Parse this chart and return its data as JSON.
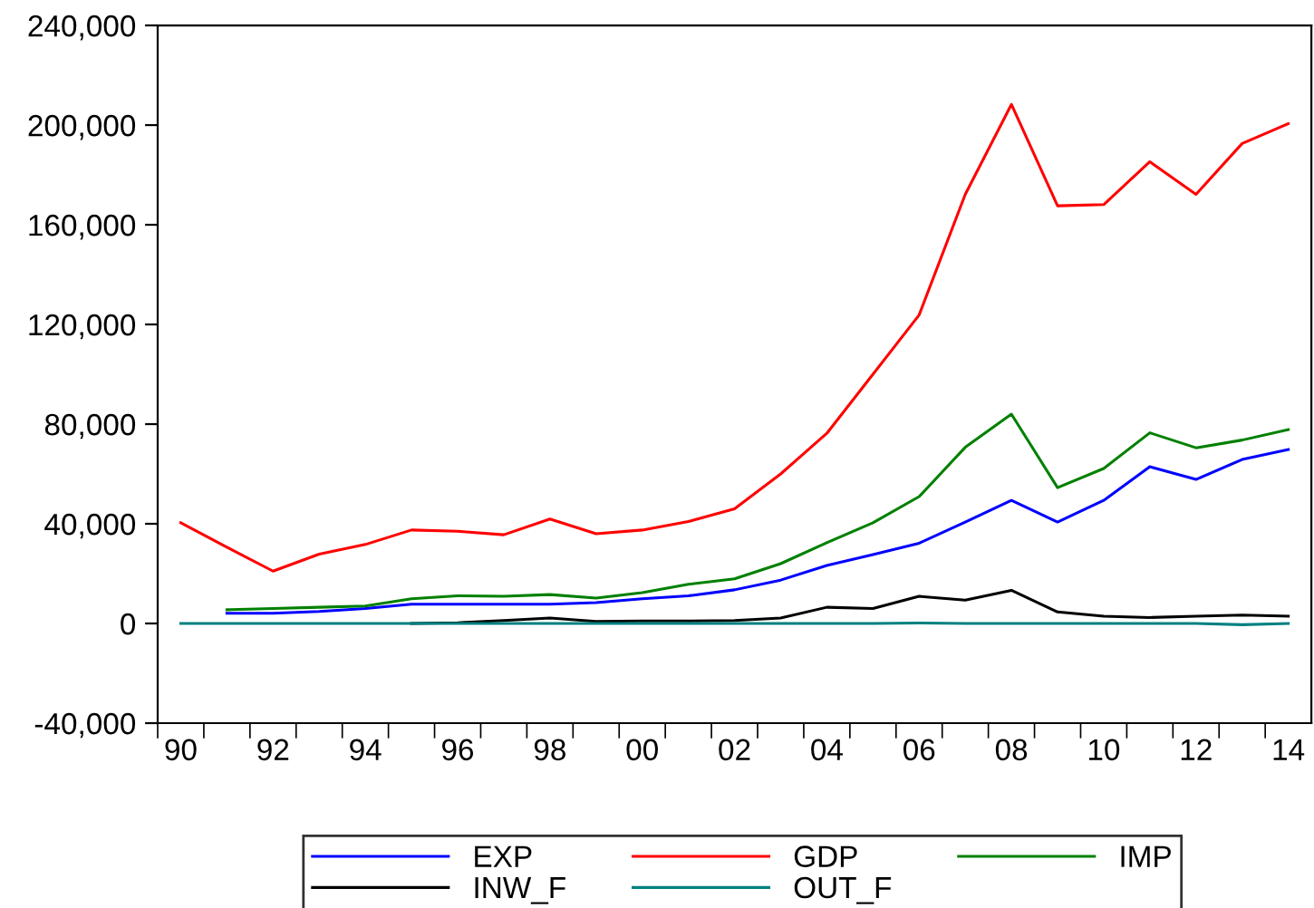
{
  "chart_data": {
    "type": "line",
    "x": [
      1990,
      1991,
      1992,
      1993,
      1994,
      1995,
      1996,
      1997,
      1998,
      1999,
      2000,
      2001,
      2002,
      2003,
      2004,
      2005,
      2006,
      2007,
      2008,
      2009,
      2010,
      2011,
      2012,
      2013,
      2014
    ],
    "series": [
      {
        "name": "EXP",
        "color": "#0000ff",
        "values": [
          null,
          4100,
          4100,
          4800,
          6000,
          7700,
          7700,
          7700,
          7700,
          8400,
          9900,
          11100,
          13500,
          17400,
          23300,
          27600,
          32200,
          40700,
          49400,
          40700,
          49400,
          62900,
          57800,
          65800,
          69800
        ]
      },
      {
        "name": "GDP",
        "color": "#ff0000",
        "values": [
          40400,
          30600,
          21000,
          27800,
          31700,
          37500,
          37000,
          35600,
          41900,
          36000,
          37500,
          40900,
          46000,
          60000,
          76300,
          100000,
          123800,
          172200,
          208300,
          167600,
          168100,
          185300,
          172200,
          192600,
          200600
        ]
      },
      {
        "name": "IMP",
        "color": "#008000",
        "values": [
          null,
          5500,
          6000,
          6500,
          7000,
          9900,
          11100,
          10900,
          11600,
          10200,
          12400,
          15700,
          17900,
          24000,
          32400,
          40400,
          50900,
          70700,
          84000,
          54500,
          62200,
          76500,
          70500,
          73600,
          77800
        ]
      },
      {
        "name": "INW_F",
        "color": "#000000",
        "values": [
          null,
          null,
          null,
          null,
          null,
          0,
          300,
          1200,
          2200,
          800,
          1000,
          1000,
          1200,
          2200,
          6500,
          6000,
          10900,
          9400,
          13300,
          4600,
          2900,
          2400,
          2900,
          3400,
          2900
        ]
      },
      {
        "name": "OUT_F",
        "color": "#008080",
        "values": [
          0,
          0,
          0,
          0,
          0,
          0,
          0,
          0,
          0,
          0,
          0,
          0,
          0,
          0,
          0,
          0,
          200,
          0,
          0,
          0,
          0,
          0,
          0,
          -500,
          0
        ]
      }
    ],
    "xlim": [
      1989.5,
      2014.5
    ],
    "xticks": [
      {
        "value": 1990,
        "label": "90"
      },
      {
        "value": 1992,
        "label": "92"
      },
      {
        "value": 1994,
        "label": "94"
      },
      {
        "value": 1996,
        "label": "96"
      },
      {
        "value": 1998,
        "label": "98"
      },
      {
        "value": 2000,
        "label": "00"
      },
      {
        "value": 2002,
        "label": "02"
      },
      {
        "value": 2004,
        "label": "04"
      },
      {
        "value": 2006,
        "label": "06"
      },
      {
        "value": 2008,
        "label": "08"
      },
      {
        "value": 2010,
        "label": "10"
      },
      {
        "value": 2012,
        "label": "12"
      },
      {
        "value": 2014,
        "label": "14"
      },
      {
        "value": 1989.5,
        "label": null
      },
      {
        "value": 1990.5,
        "label": null
      },
      {
        "value": 1991.5,
        "label": null
      },
      {
        "value": 1992.5,
        "label": null
      },
      {
        "value": 1993.5,
        "label": null
      },
      {
        "value": 1994.5,
        "label": null
      },
      {
        "value": 1995.5,
        "label": null
      },
      {
        "value": 1996.5,
        "label": null
      },
      {
        "value": 1997.5,
        "label": null
      },
      {
        "value": 1998.5,
        "label": null
      },
      {
        "value": 1999.5,
        "label": null
      },
      {
        "value": 2000.5,
        "label": null
      },
      {
        "value": 2001.5,
        "label": null
      },
      {
        "value": 2002.5,
        "label": null
      },
      {
        "value": 2003.5,
        "label": null
      },
      {
        "value": 2004.5,
        "label": null
      },
      {
        "value": 2005.5,
        "label": null
      },
      {
        "value": 2006.5,
        "label": null
      },
      {
        "value": 2007.5,
        "label": null
      },
      {
        "value": 2008.5,
        "label": null
      },
      {
        "value": 2009.5,
        "label": null
      },
      {
        "value": 2010.5,
        "label": null
      },
      {
        "value": 2011.5,
        "label": null
      },
      {
        "value": 2012.5,
        "label": null
      },
      {
        "value": 2013.5,
        "label": null
      }
    ],
    "ylim": [
      -40000,
      240000
    ],
    "yticks": [
      {
        "value": -40000,
        "label": "-40,000"
      },
      0,
      {
        "value": 40000,
        "label": "40,000"
      },
      {
        "value": 80000,
        "label": "80,000"
      },
      {
        "value": 120000,
        "label": "120,000"
      },
      {
        "value": 160000,
        "label": "160,000"
      },
      {
        "value": 200000,
        "label": "200,000"
      },
      {
        "value": 240000,
        "label": "240,000"
      }
    ],
    "grid": false,
    "legend": "bottom",
    "marker": "none",
    "line_style": "solid"
  }
}
